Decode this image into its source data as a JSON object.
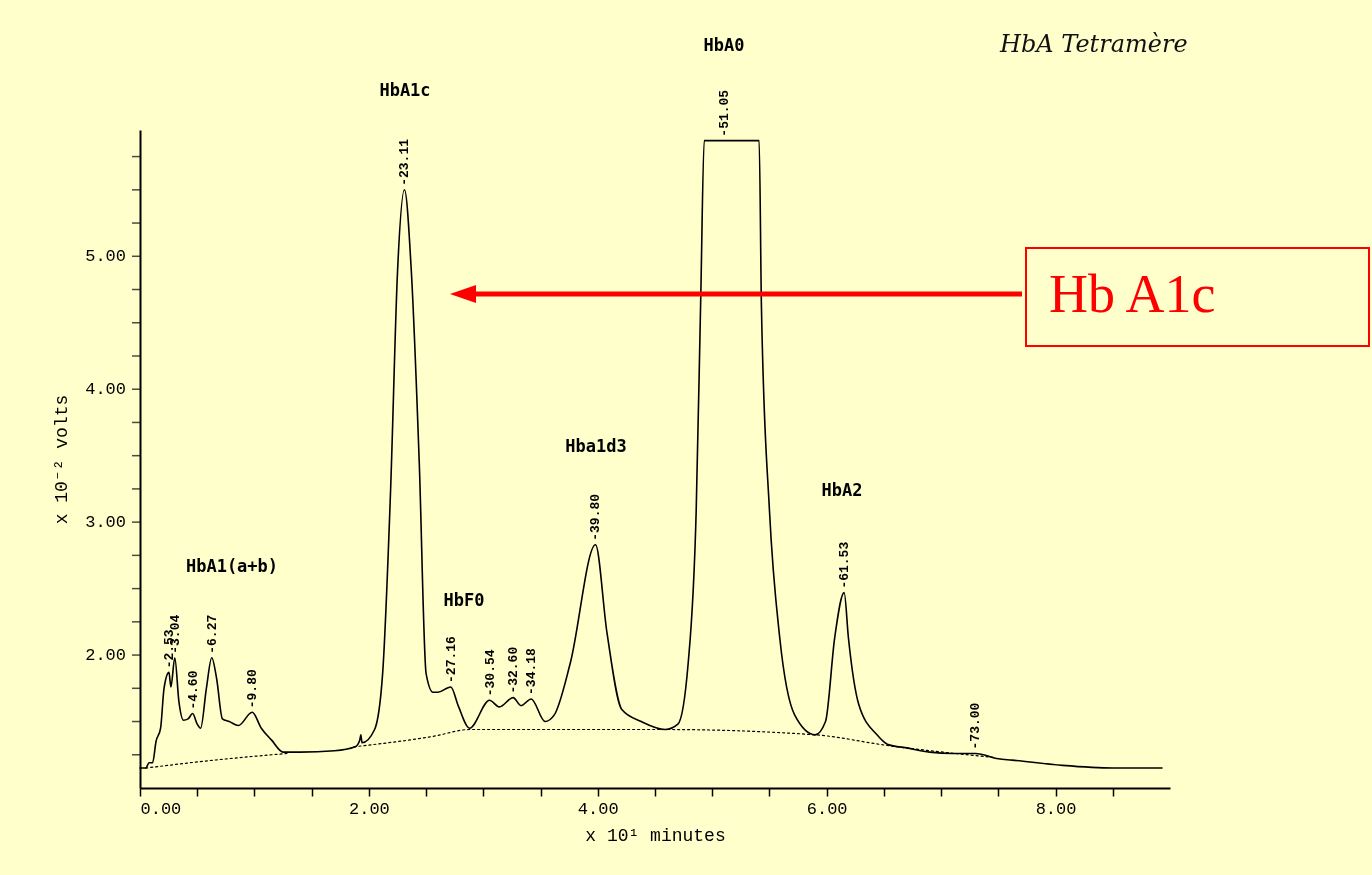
{
  "chart_data": {
    "type": "line",
    "xlabel": "x 10¹ minutes",
    "ylabel": "x 10⁻² volts",
    "xlim": [
      0,
      9
    ],
    "ylim": [
      1.0,
      5.95
    ],
    "xticks": [
      {
        "value": 0,
        "label": "0.00"
      },
      {
        "value": 0.5,
        "label": null
      },
      {
        "value": 1,
        "label": null
      },
      {
        "value": 1.5,
        "label": null
      },
      {
        "value": 2,
        "label": "2.00"
      },
      {
        "value": 2.5,
        "label": null
      },
      {
        "value": 3,
        "label": null
      },
      {
        "value": 3.5,
        "label": null
      },
      {
        "value": 4,
        "label": "4.00"
      },
      {
        "value": 4.5,
        "label": null
      },
      {
        "value": 5,
        "label": null
      },
      {
        "value": 5.5,
        "label": null
      },
      {
        "value": 6,
        "label": "6.00"
      },
      {
        "value": 6.5,
        "label": null
      },
      {
        "value": 7,
        "label": null
      },
      {
        "value": 7.5,
        "label": null
      },
      {
        "value": 8,
        "label": "8.00"
      },
      {
        "value": 8.5,
        "label": null
      }
    ],
    "yticks": [
      {
        "value": 1.25,
        "label": null
      },
      {
        "value": 1.5,
        "label": null
      },
      {
        "value": 1.75,
        "label": null
      },
      {
        "value": 2,
        "label": "2.00"
      },
      {
        "value": 2.25,
        "label": null
      },
      {
        "value": 2.5,
        "label": null
      },
      {
        "value": 2.75,
        "label": null
      },
      {
        "value": 3,
        "label": "3.00"
      },
      {
        "value": 3.25,
        "label": null
      },
      {
        "value": 3.5,
        "label": null
      },
      {
        "value": 3.75,
        "label": null
      },
      {
        "value": 4,
        "label": "4.00"
      },
      {
        "value": 4.25,
        "label": null
      },
      {
        "value": 4.5,
        "label": null
      },
      {
        "value": 4.75,
        "label": null
      },
      {
        "value": 5,
        "label": "5.00"
      },
      {
        "value": 5.25,
        "label": null
      },
      {
        "value": 5.5,
        "label": null
      },
      {
        "value": 5.75,
        "label": null
      }
    ],
    "grid": false,
    "marker": "none",
    "series": [
      {
        "color": "#000000",
        "line_style": "solid",
        "x": [
          0,
          0.05,
          0.08,
          0.11,
          0.14,
          0.18,
          0.21,
          0.253,
          0.27,
          0.304,
          0.34,
          0.38,
          0.42,
          0.46,
          0.5,
          0.53,
          0.58,
          0.627,
          0.67,
          0.72,
          0.78,
          0.86,
          0.98,
          1.06,
          1.15,
          1.25,
          1.4,
          1.7,
          1.88,
          1.92,
          1.93,
          1.94,
          2.05,
          2.12,
          2.19,
          2.25,
          2.311,
          2.37,
          2.44,
          2.5,
          2.56,
          2.6,
          2.716,
          2.78,
          2.88,
          3.054,
          3.14,
          3.26,
          3.33,
          3.418,
          3.54,
          3.62,
          3.76,
          3.98,
          4.08,
          4.21,
          4.38,
          4.59,
          4.7,
          4.79,
          4.86,
          4.9,
          4.93,
          5.105,
          5.41,
          5.43,
          5.5,
          5.59,
          5.72,
          5.9,
          5.99,
          6.07,
          6.153,
          6.19,
          6.28,
          6.44,
          6.53,
          6.71,
          6.9,
          7.1,
          7.3,
          7.5,
          7.62,
          8.06,
          8.5,
          8.93
        ],
        "values": [
          1.15,
          1.15,
          1.19,
          1.19,
          1.35,
          1.45,
          1.75,
          1.87,
          1.76,
          1.98,
          1.65,
          1.51,
          1.52,
          1.56,
          1.48,
          1.45,
          1.75,
          1.98,
          1.82,
          1.52,
          1.5,
          1.47,
          1.57,
          1.45,
          1.36,
          1.27,
          1.27,
          1.28,
          1.31,
          1.36,
          1.4,
          1.34,
          1.44,
          1.86,
          3.25,
          4.88,
          5.5,
          4.9,
          3.45,
          1.86,
          1.72,
          1.72,
          1.76,
          1.62,
          1.45,
          1.66,
          1.61,
          1.68,
          1.62,
          1.67,
          1.5,
          1.55,
          1.94,
          2.83,
          2.17,
          1.59,
          1.5,
          1.44,
          1.48,
          1.94,
          3.09,
          4.7,
          5.87,
          5.87,
          5.87,
          4.62,
          3.09,
          2.13,
          1.55,
          1.4,
          1.5,
          2.13,
          2.47,
          2.13,
          1.63,
          1.4,
          1.33,
          1.3,
          1.27,
          1.26,
          1.26,
          1.22,
          1.21,
          1.17,
          1.15,
          1.15
        ]
      },
      {
        "color": "#000000",
        "line_style": "dotted",
        "x": [
          0.05,
          0.65,
          1.29,
          1.5,
          1.87,
          2.57,
          2.88,
          4.59,
          5.9,
          6.53,
          7.46
        ],
        "values": [
          1.15,
          1.21,
          1.26,
          null,
          1.31,
          1.39,
          1.44,
          1.44,
          1.4,
          1.32,
          1.23
        ]
      }
    ],
    "annotations": [
      {
        "text": "-2.53",
        "x": 0.253,
        "y": 1.87
      },
      {
        "text": "-3.04",
        "x": 0.304,
        "y": 1.98
      },
      {
        "text": "-4.60",
        "x": 0.46,
        "y": 1.56
      },
      {
        "text": "-6.27",
        "x": 0.627,
        "y": 1.98
      },
      {
        "text": "-9.80",
        "x": 0.98,
        "y": 1.57
      },
      {
        "text": "-23.11",
        "x": 2.311,
        "y": 5.5
      },
      {
        "text": "-27.16",
        "x": 2.716,
        "y": 1.76
      },
      {
        "text": "-30.54",
        "x": 3.054,
        "y": 1.66
      },
      {
        "text": "-32.60",
        "x": 3.26,
        "y": 1.68
      },
      {
        "text": "-34.18",
        "x": 3.418,
        "y": 1.67
      },
      {
        "text": "-39.80",
        "x": 3.98,
        "y": 2.83
      },
      {
        "text": "-51.05",
        "x": 5.105,
        "y": 5.87
      },
      {
        "text": "-61.53",
        "x": 6.153,
        "y": 2.47
      },
      {
        "text": "-73.00",
        "x": 7.3,
        "y": 1.26
      },
      "HbA1(a+b)",
      "HbA1c",
      "HbF0",
      "Hba1d3",
      "HbA0",
      "HbA2",
      "HbA Tetramère",
      "Hb A1c"
    ]
  }
}
